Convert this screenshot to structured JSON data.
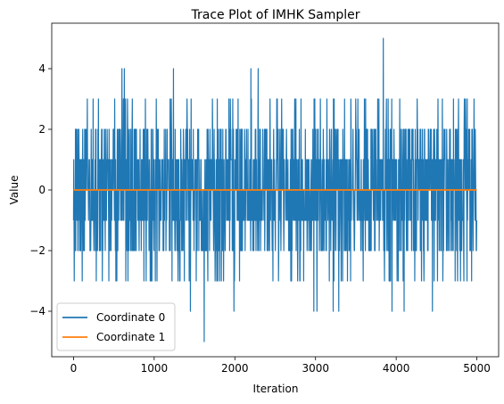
{
  "chart_data": {
    "type": "line",
    "title": "Trace Plot of IMHK Sampler",
    "xlabel": "Iteration",
    "ylabel": "Value",
    "xlim": [
      -270,
      5270
    ],
    "ylim": [
      -5.5,
      5.5
    ],
    "x_ticks": [
      0,
      1000,
      2000,
      3000,
      4000,
      5000
    ],
    "y_ticks": [
      -4,
      -2,
      0,
      2,
      4
    ],
    "grid": false,
    "legend_position": "lower-left",
    "x_range": [
      0,
      4999
    ],
    "series": [
      {
        "name": "Coordinate 0",
        "color": "#1f77b4",
        "description_stats": {
          "min": -5,
          "max": 5
        },
        "extremes": [
          {
            "x": 600,
            "y": 4
          },
          {
            "x": 630,
            "y": 4
          },
          {
            "x": 1240,
            "y": 4
          },
          {
            "x": 2200,
            "y": 4
          },
          {
            "x": 2290,
            "y": 4
          },
          {
            "x": 3840,
            "y": 5
          },
          {
            "x": 1450,
            "y": -4
          },
          {
            "x": 1620,
            "y": -5
          },
          {
            "x": 1990,
            "y": -4
          },
          {
            "x": 2980,
            "y": -4
          },
          {
            "x": 3020,
            "y": -4
          },
          {
            "x": 3220,
            "y": -4
          },
          {
            "x": 3290,
            "y": -4
          },
          {
            "x": 3950,
            "y": -4
          },
          {
            "x": 4100,
            "y": -4
          },
          {
            "x": 4450,
            "y": -4
          }
        ]
      },
      {
        "name": "Coordinate 1",
        "color": "#ff7f0e",
        "values_constant": 0
      }
    ]
  }
}
